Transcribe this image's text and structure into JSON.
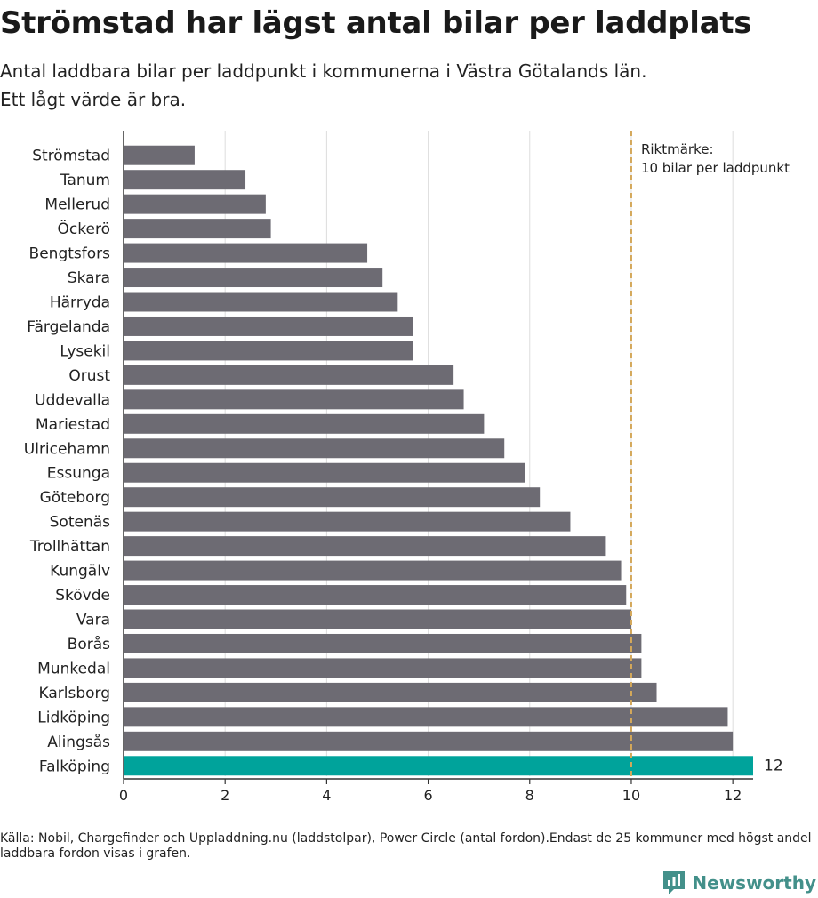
{
  "title": "Strömstad har lägst antal bilar per laddplats",
  "subtitle_line1": "Antal laddbara bilar per laddpunkt i kommunerna i Västra Götalands län.",
  "subtitle_line2": "Ett lågt värde är bra.",
  "footnote": "Källa: Nobil, Chargefinder och Uppladdning.nu (laddstolpar), Power Circle (antal fordon).Endast de 25 kommuner med högst andel laddbara fordon visas i grafen.",
  "brand": {
    "name": "Newsworthy",
    "icon": "newsworthy-logo-icon"
  },
  "colors": {
    "bar": "#6d6b73",
    "highlight": "#00a39b",
    "reference_line": "#d4a85a",
    "grid": "#dddddd"
  },
  "chart_data": {
    "type": "bar",
    "orientation": "horizontal",
    "categories": [
      "Strömstad",
      "Tanum",
      "Mellerud",
      "Öckerö",
      "Bengtsfors",
      "Skara",
      "Härryda",
      "Färgelanda",
      "Lysekil",
      "Orust",
      "Uddevalla",
      "Mariestad",
      "Ulricehamn",
      "Essunga",
      "Göteborg",
      "Sotenäs",
      "Trollhättan",
      "Kungälv",
      "Skövde",
      "Vara",
      "Borås",
      "Munkedal",
      "Karlsborg",
      "Lidköping",
      "Alingsås",
      "Falköping"
    ],
    "values": [
      1.4,
      2.4,
      2.8,
      2.9,
      4.8,
      5.1,
      5.4,
      5.7,
      5.7,
      6.5,
      6.7,
      7.1,
      7.5,
      7.9,
      8.2,
      8.8,
      9.5,
      9.8,
      9.9,
      10.0,
      10.2,
      10.2,
      10.5,
      11.9,
      12.0,
      12.4
    ],
    "highlight_category": "Falköping",
    "highlight_label": "12",
    "xlim": [
      0,
      12.4
    ],
    "xticks": [
      0,
      2,
      4,
      6,
      8,
      10,
      12
    ],
    "grid": true,
    "reference_line": {
      "value": 10,
      "label_line1": "Riktmärke:",
      "label_line2": "10 bilar per laddpunkt"
    }
  }
}
